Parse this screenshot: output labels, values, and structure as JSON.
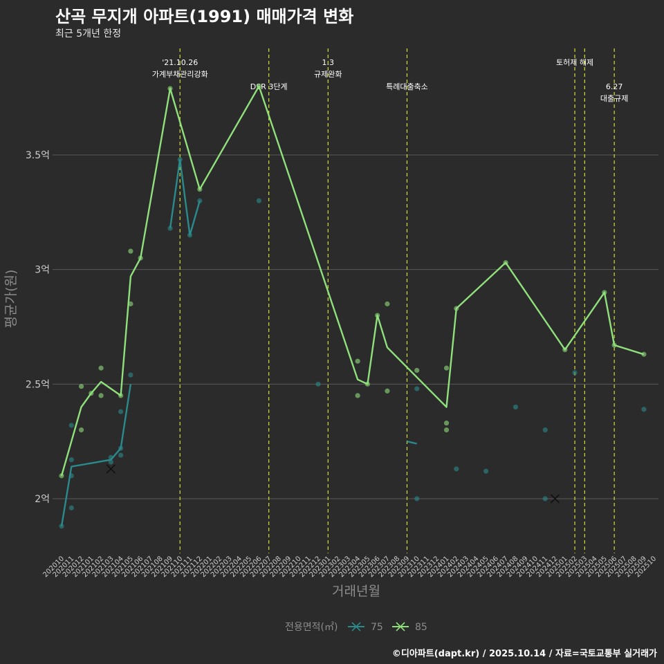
{
  "header": {
    "title": "산곡 무지개 아파트(1991) 매매가격 변화",
    "subtitle": "최근 5개년 한정"
  },
  "caption": "©디아파트(dapt.kr) / 2025.10.14 / 자료=국토교통부 실거래가",
  "colors": {
    "background": "#2b2b2b",
    "grid": "#5a5a5a",
    "series_75": "#2a8a8c",
    "series_85": "#90e07c",
    "event_line": "#d4e033"
  },
  "chart_data": {
    "type": "line",
    "title": "산곡 무지개 아파트(1991) 매매가격 변화",
    "xlabel": "거래년월",
    "ylabel": "평균가(원)",
    "ylim": [
      1.8,
      3.9
    ],
    "y_ticks": [
      {
        "value": 2.0,
        "label": "2억"
      },
      {
        "value": 2.5,
        "label": "2.5억"
      },
      {
        "value": 3.0,
        "label": "3억"
      },
      {
        "value": 3.5,
        "label": "3.5억"
      }
    ],
    "x_categories": [
      "202010",
      "202011",
      "202012",
      "202101",
      "202102",
      "202103",
      "202104",
      "202105",
      "202106",
      "202107",
      "202108",
      "202109",
      "202110",
      "202111",
      "202112",
      "202201",
      "202202",
      "202203",
      "202204",
      "202205",
      "202206",
      "202207",
      "202208",
      "202209",
      "202210",
      "202211",
      "202212",
      "202301",
      "202302",
      "202303",
      "202304",
      "202305",
      "202306",
      "202307",
      "202308",
      "202309",
      "202310",
      "202311",
      "202312",
      "202401",
      "202402",
      "202403",
      "202404",
      "202405",
      "202406",
      "202407",
      "202408",
      "202409",
      "202410",
      "202411",
      "202412",
      "202501",
      "202502",
      "202503",
      "202504",
      "202505",
      "202506",
      "202507",
      "202508",
      "202509",
      "202510"
    ],
    "legend": {
      "title": "전용면적(㎡)",
      "entries": [
        "75",
        "85"
      ]
    },
    "series": [
      {
        "name": "75",
        "line_segments": [
          [
            [
              0,
              1.88
            ],
            [
              1,
              2.14
            ],
            [
              5,
              2.17
            ],
            [
              6,
              2.22
            ],
            [
              7,
              2.5
            ]
          ],
          [
            [
              11,
              3.18
            ],
            [
              12,
              3.48
            ],
            [
              13,
              3.15
            ],
            [
              14,
              3.3
            ]
          ],
          [
            [
              35,
              2.25
            ],
            [
              36,
              2.24
            ]
          ]
        ],
        "points": [
          [
            0,
            1.88
          ],
          [
            1,
            2.32
          ],
          [
            1,
            2.17
          ],
          [
            1,
            2.1
          ],
          [
            1,
            1.96
          ],
          [
            5,
            2.16
          ],
          [
            5,
            2.18
          ],
          [
            6,
            2.38
          ],
          [
            6,
            2.22
          ],
          [
            6,
            2.19
          ],
          [
            7,
            2.54
          ],
          [
            11,
            3.18
          ],
          [
            12,
            3.48
          ],
          [
            13,
            3.15
          ],
          [
            14,
            3.3
          ],
          [
            20,
            3.3
          ],
          [
            26,
            2.5
          ],
          [
            36,
            2.48
          ],
          [
            36,
            2.0
          ],
          [
            40,
            2.13
          ],
          [
            43,
            2.12
          ],
          [
            46,
            2.4
          ],
          [
            49,
            2.3
          ],
          [
            49,
            2.0
          ],
          [
            52,
            2.55
          ],
          [
            59,
            2.39
          ]
        ],
        "x_marks": [
          [
            5,
            2.13
          ],
          [
            50,
            2.0
          ]
        ]
      },
      {
        "name": "85",
        "line_segments": [
          [
            [
              0,
              2.1
            ],
            [
              2,
              2.4
            ],
            [
              3,
              2.46
            ],
            [
              4,
              2.51
            ],
            [
              6,
              2.45
            ],
            [
              7,
              2.97
            ],
            [
              8,
              3.05
            ],
            [
              11,
              3.79
            ],
            [
              14,
              3.35
            ],
            [
              20,
              3.8
            ],
            [
              30,
              2.52
            ],
            [
              31,
              2.5
            ],
            [
              32,
              2.8
            ],
            [
              33,
              2.66
            ],
            [
              39,
              2.4
            ],
            [
              40,
              2.83
            ],
            [
              45,
              3.03
            ],
            [
              51,
              2.65
            ],
            [
              55,
              2.9
            ],
            [
              56,
              2.67
            ],
            [
              59,
              2.63
            ]
          ]
        ],
        "points": [
          [
            0,
            2.1
          ],
          [
            2,
            2.49
          ],
          [
            2,
            2.3
          ],
          [
            3,
            2.46
          ],
          [
            4,
            2.57
          ],
          [
            4,
            2.45
          ],
          [
            6,
            2.45
          ],
          [
            7,
            3.08
          ],
          [
            7,
            2.85
          ],
          [
            8,
            3.05
          ],
          [
            11,
            3.79
          ],
          [
            14,
            3.35
          ],
          [
            20,
            3.8
          ],
          [
            30,
            2.6
          ],
          [
            30,
            2.45
          ],
          [
            31,
            2.5
          ],
          [
            32,
            2.8
          ],
          [
            33,
            2.85
          ],
          [
            33,
            2.47
          ],
          [
            36,
            2.56
          ],
          [
            39,
            2.57
          ],
          [
            39,
            2.33
          ],
          [
            39,
            2.3
          ],
          [
            40,
            2.83
          ],
          [
            45,
            3.03
          ],
          [
            51,
            2.65
          ],
          [
            55,
            2.9
          ],
          [
            56,
            2.67
          ],
          [
            59,
            2.63
          ]
        ],
        "x_marks": []
      }
    ],
    "events": [
      {
        "x": 12,
        "lines": [
          "'21.10.26",
          "가계부채관리강화"
        ],
        "level": 0
      },
      {
        "x": 21,
        "lines": [
          "DSR 3단계"
        ],
        "level": 1
      },
      {
        "x": 27,
        "lines": [
          "1.3",
          "규제완화"
        ],
        "level": 0
      },
      {
        "x": 35,
        "lines": [
          "특례대출축소"
        ],
        "level": 1
      },
      {
        "x": 52,
        "lines": [
          "토허제 해제"
        ],
        "level": 0
      },
      {
        "x": 53,
        "lines": [],
        "level": 0
      },
      {
        "x": 56,
        "lines": [
          "6.27",
          "대출규제"
        ],
        "level": 1
      }
    ]
  }
}
